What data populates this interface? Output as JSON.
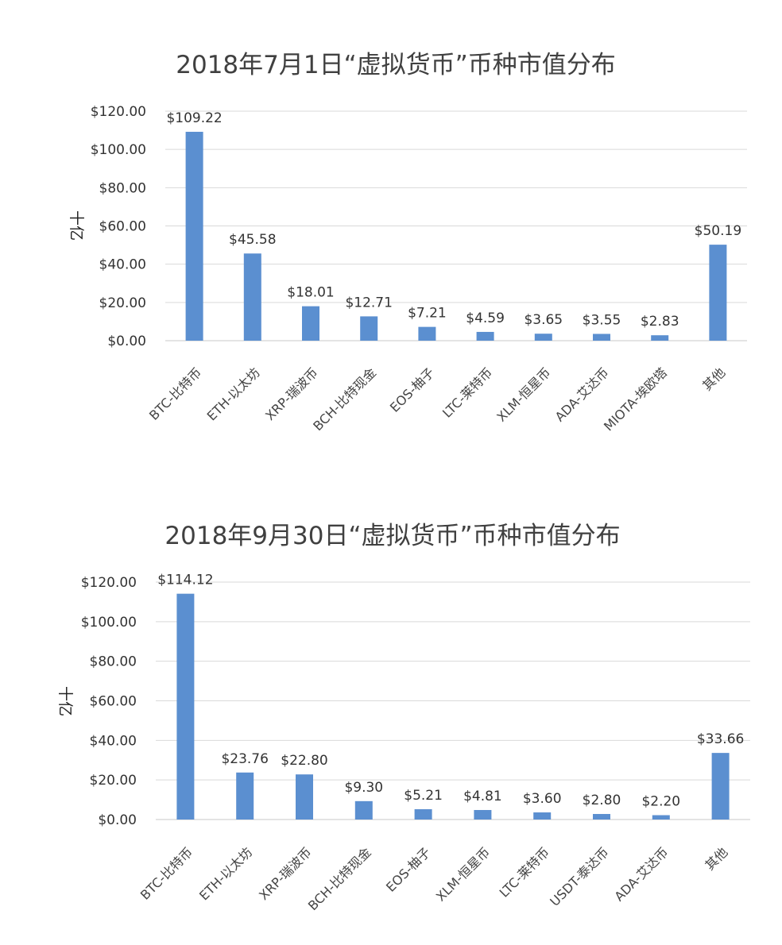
{
  "chart_data": [
    {
      "type": "bar",
      "title": "2018年7月1日“虚拟货币”币种市值分布",
      "ylabel": "十亿",
      "ylim": [
        0,
        120
      ],
      "yticks": [
        "$0.00",
        "$20.00",
        "$40.00",
        "$60.00",
        "$80.00",
        "$100.00",
        "$120.00"
      ],
      "grid": true,
      "bar_color": "#5b8fd0",
      "categories": [
        "BTC-比特币",
        "ETH-以太坊",
        "XRP-瑞波币",
        "BCH-比特现金",
        "EOS-柚子",
        "LTC-莱特币",
        "XLM-恒星币",
        "ADA-艾达币",
        "MIOTA-埃欧塔",
        "其他"
      ],
      "values": [
        109.22,
        45.58,
        18.01,
        12.71,
        7.21,
        4.59,
        3.65,
        3.55,
        2.83,
        50.19
      ],
      "labels": [
        "$109.22",
        "$45.58",
        "$18.01",
        "$12.71",
        "$7.21",
        "$4.59",
        "$3.65",
        "$3.55",
        "$2.83",
        "$50.19"
      ]
    },
    {
      "type": "bar",
      "title": "2018年9月30日“虚拟货币”币种市值分布",
      "ylabel": "十亿",
      "ylim": [
        0,
        120
      ],
      "yticks": [
        "$0.00",
        "$20.00",
        "$40.00",
        "$60.00",
        "$80.00",
        "$100.00",
        "$120.00"
      ],
      "grid": true,
      "bar_color": "#5b8fd0",
      "categories": [
        "BTC-比特币",
        "ETH-以太坊",
        "XRP-瑞波币",
        "BCH-比特现金",
        "EOS-柚子",
        "XLM-恒星币",
        "LTC-莱特币",
        "USDT-泰达币",
        "ADA-艾达币",
        "其他"
      ],
      "values": [
        114.12,
        23.76,
        22.8,
        9.3,
        5.21,
        4.81,
        3.6,
        2.8,
        2.2,
        33.66
      ],
      "labels": [
        "$114.12",
        "$23.76",
        "$22.80",
        "$9.30",
        "$5.21",
        "$4.81",
        "$3.60",
        "$2.80",
        "$2.20",
        "$33.66"
      ]
    }
  ]
}
